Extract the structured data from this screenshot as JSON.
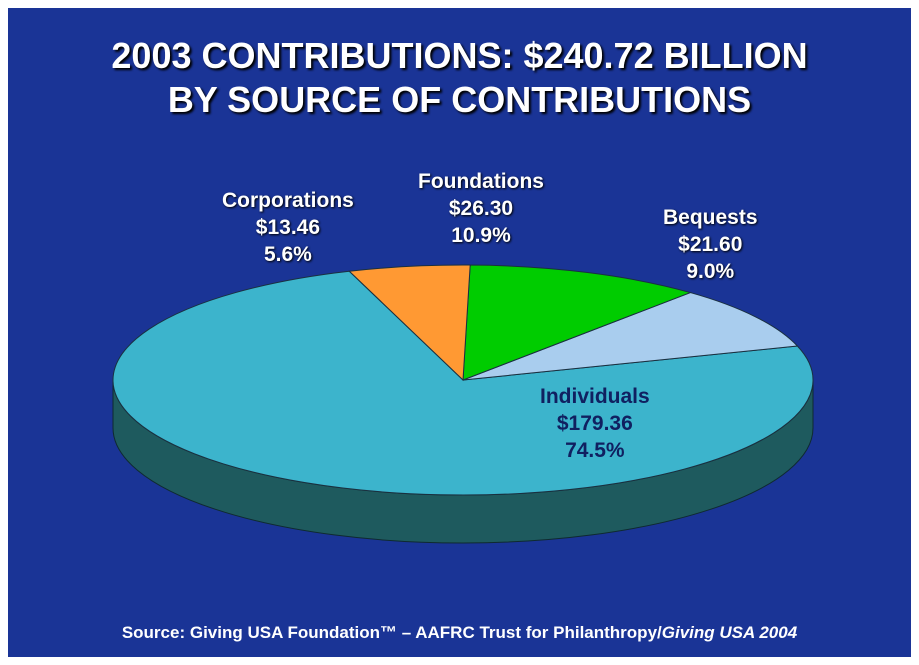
{
  "title": {
    "line1": "2003 CONTRIBUTIONS:  $240.72 BILLION",
    "line2": "BY SOURCE OF CONTRIBUTIONS"
  },
  "chart_data": {
    "type": "pie",
    "title": "2003 CONTRIBUTIONS:  $240.72 BILLION BY SOURCE OF CONTRIBUTIONS",
    "unit": "$ billions",
    "slices": [
      {
        "name": "Individuals",
        "value": 179.36,
        "value_label": "$179.36",
        "percent": 74.5,
        "percent_label": "74.5%",
        "color": "#3cb4cc"
      },
      {
        "name": "Bequests",
        "value": 21.6,
        "value_label": "$21.60",
        "percent": 9.0,
        "percent_label": "9.0%",
        "color": "#a9cdee"
      },
      {
        "name": "Foundations",
        "value": 26.3,
        "value_label": "$26.30",
        "percent": 10.9,
        "percent_label": "10.9%",
        "color": "#00cc00"
      },
      {
        "name": "Corporations",
        "value": 13.46,
        "value_label": "$13.46",
        "percent": 5.6,
        "percent_label": "5.6%",
        "color": "#ff9933"
      }
    ]
  },
  "colors": {
    "background": "#1a3496",
    "side_shade": "#1e5a5e"
  },
  "source": {
    "prefix": "Source: Giving USA Foundation™ – AAFRC Trust for Philanthropy/",
    "italic": "Giving USA 2004"
  }
}
